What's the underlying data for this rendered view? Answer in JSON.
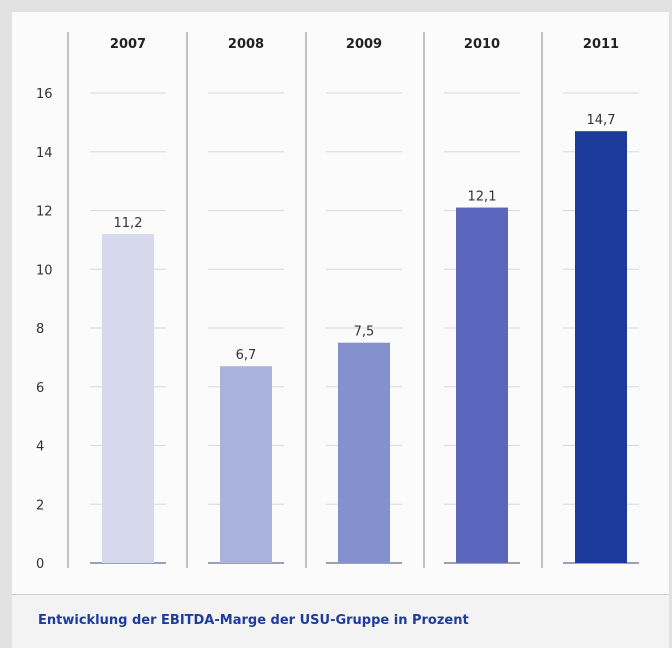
{
  "chart_data": {
    "type": "bar",
    "categories": [
      "2007",
      "2008",
      "2009",
      "2010",
      "2011"
    ],
    "values": [
      11.2,
      6.7,
      7.5,
      12.1,
      14.7
    ],
    "value_labels": [
      "11,2",
      "6,7",
      "7,5",
      "12,1",
      "14,7"
    ],
    "yticks": [
      "0",
      "2",
      "4",
      "6",
      "8",
      "10",
      "12",
      "14",
      "16"
    ],
    "ylim": [
      0,
      16
    ],
    "grid": true,
    "bar_colors": [
      "#d6d9ee",
      "#aab2de",
      "#8590cf",
      "#5a67bd",
      "#1b3a9a"
    ]
  },
  "caption": "Entwicklung der EBITDA-Marge der USU-Gruppe in Prozent"
}
